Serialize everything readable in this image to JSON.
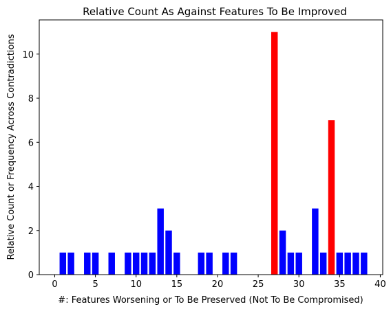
{
  "chart_data": {
    "type": "bar",
    "title": "Relative Count As Against Features To Be Improved",
    "xlabel": "#: Features Worsening or To Be Preserved (Not To Be Compromised)",
    "ylabel": "Relative Count or Frequency Across Contradictions",
    "xlim": [
      -1.9,
      40.3
    ],
    "ylim": [
      0,
      11.55
    ],
    "xticks": [
      0,
      5,
      10,
      15,
      20,
      25,
      30,
      35,
      40
    ],
    "yticks": [
      0,
      2,
      4,
      6,
      8,
      10
    ],
    "grid": false,
    "bar_width": 0.8,
    "colors": {
      "default": "#0000ff",
      "highlight": "#ff0000"
    },
    "bars": [
      {
        "x": 1,
        "value": 1,
        "color": "#0000ff"
      },
      {
        "x": 2,
        "value": 1,
        "color": "#0000ff"
      },
      {
        "x": 4,
        "value": 1,
        "color": "#0000ff"
      },
      {
        "x": 5,
        "value": 1,
        "color": "#0000ff"
      },
      {
        "x": 7,
        "value": 1,
        "color": "#0000ff"
      },
      {
        "x": 9,
        "value": 1,
        "color": "#0000ff"
      },
      {
        "x": 10,
        "value": 1,
        "color": "#0000ff"
      },
      {
        "x": 11,
        "value": 1,
        "color": "#0000ff"
      },
      {
        "x": 12,
        "value": 1,
        "color": "#0000ff"
      },
      {
        "x": 13,
        "value": 3,
        "color": "#0000ff"
      },
      {
        "x": 14,
        "value": 2,
        "color": "#0000ff"
      },
      {
        "x": 15,
        "value": 1,
        "color": "#0000ff"
      },
      {
        "x": 18,
        "value": 1,
        "color": "#0000ff"
      },
      {
        "x": 19,
        "value": 1,
        "color": "#0000ff"
      },
      {
        "x": 21,
        "value": 1,
        "color": "#0000ff"
      },
      {
        "x": 22,
        "value": 1,
        "color": "#0000ff"
      },
      {
        "x": 27,
        "value": 11,
        "color": "#ff0000"
      },
      {
        "x": 28,
        "value": 2,
        "color": "#0000ff"
      },
      {
        "x": 29,
        "value": 1,
        "color": "#0000ff"
      },
      {
        "x": 30,
        "value": 1,
        "color": "#0000ff"
      },
      {
        "x": 32,
        "value": 3,
        "color": "#0000ff"
      },
      {
        "x": 33,
        "value": 1,
        "color": "#0000ff"
      },
      {
        "x": 34,
        "value": 7,
        "color": "#ff0000"
      },
      {
        "x": 35,
        "value": 1,
        "color": "#0000ff"
      },
      {
        "x": 36,
        "value": 1,
        "color": "#0000ff"
      },
      {
        "x": 37,
        "value": 1,
        "color": "#0000ff"
      },
      {
        "x": 38,
        "value": 1,
        "color": "#0000ff"
      }
    ]
  }
}
